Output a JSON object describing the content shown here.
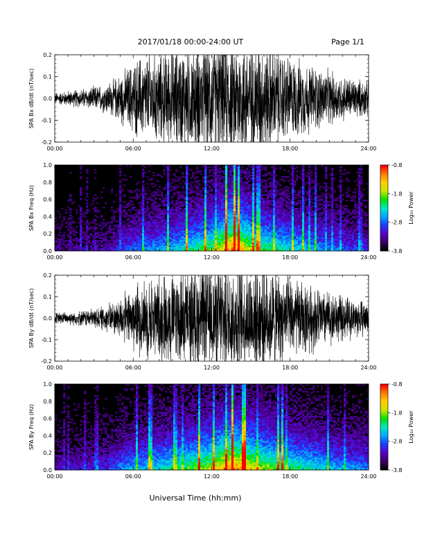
{
  "header": {
    "title": "2017/01/18  00:00-24:00 UT",
    "page": "Page 1/1"
  },
  "footer": {
    "xlabel": "Universal Time (hh:mm)"
  },
  "chart_data": [
    {
      "type": "line",
      "ylabel": "SPA Bx dB/dt (nT/sec)",
      "xlim": [
        0,
        24
      ],
      "ylim": [
        -0.2,
        0.2
      ],
      "xticks": [
        "00:00",
        "06:00",
        "12:00",
        "18:00",
        "24:00"
      ],
      "yticks": [
        "-0.2",
        "-0.1",
        "0.0",
        "0.1",
        "0.2"
      ],
      "series": [
        {
          "values": [
            {
              "t": 0,
              "amp": 0.03
            },
            {
              "t": 2,
              "amp": 0.05
            },
            {
              "t": 3.5,
              "amp": 0.07
            },
            {
              "t": 4.5,
              "amp": 0.1
            },
            {
              "t": 5.5,
              "amp": 0.16
            },
            {
              "t": 6.5,
              "amp": 0.22
            },
            {
              "t": 9,
              "amp": 0.26
            },
            {
              "t": 12,
              "amp": 0.3
            },
            {
              "t": 14,
              "amp": 0.32
            },
            {
              "t": 16,
              "amp": 0.3
            },
            {
              "t": 18,
              "amp": 0.22
            },
            {
              "t": 20,
              "amp": 0.17
            },
            {
              "t": 22,
              "amp": 0.12
            },
            {
              "t": 24,
              "amp": 0.09
            }
          ]
        }
      ]
    },
    {
      "type": "heatmap",
      "ylabel": "SPA Bx Freq (Hz)",
      "colorbar_label": "Log₁₀ Power",
      "xlim": [
        0,
        24
      ],
      "ylim": [
        0,
        1
      ],
      "zlim": [
        -3.8,
        -0.8
      ],
      "xticks": [
        "00:00",
        "06:00",
        "12:00",
        "18:00",
        "24:00"
      ],
      "yticks": [
        "0.0",
        "0.2",
        "0.4",
        "0.6",
        "0.8",
        "1.0"
      ],
      "colorbar_ticks": [
        "-0.8",
        "-1.8",
        "-2.8",
        "-3.8"
      ],
      "colormap": [
        "#000000",
        "#3a0066",
        "#5a00c8",
        "#1e3cff",
        "#00a8ff",
        "#00e8c8",
        "#00e000",
        "#c8e600",
        "#ffd000",
        "#ff8000",
        "#ff0000"
      ],
      "activity": [
        {
          "t": 0,
          "level": 0.15
        },
        {
          "t": 4,
          "level": 0.2
        },
        {
          "t": 5.5,
          "level": 0.35
        },
        {
          "t": 9,
          "level": 0.5
        },
        {
          "t": 12,
          "level": 0.7
        },
        {
          "t": 13.6,
          "level": 1.0
        },
        {
          "t": 15.5,
          "level": 0.7
        },
        {
          "t": 18,
          "level": 0.55
        },
        {
          "t": 21,
          "level": 0.4
        },
        {
          "t": 24,
          "level": 0.3
        }
      ]
    },
    {
      "type": "line",
      "ylabel": "SPA By dB/dt (nT/sec)",
      "xlim": [
        0,
        24
      ],
      "ylim": [
        -0.2,
        0.2
      ],
      "xticks": [
        "00:00",
        "06:00",
        "12:00",
        "18:00",
        "24:00"
      ],
      "yticks": [
        "-0.2",
        "-0.1",
        "0.0",
        "0.1",
        "0.2"
      ],
      "series": [
        {
          "values": [
            {
              "t": 0,
              "amp": 0.03
            },
            {
              "t": 2,
              "amp": 0.04
            },
            {
              "t": 3.5,
              "amp": 0.06
            },
            {
              "t": 4.5,
              "amp": 0.09
            },
            {
              "t": 5.5,
              "amp": 0.14
            },
            {
              "t": 6.5,
              "amp": 0.2
            },
            {
              "t": 9,
              "amp": 0.25
            },
            {
              "t": 12,
              "amp": 0.29
            },
            {
              "t": 14,
              "amp": 0.31
            },
            {
              "t": 16,
              "amp": 0.29
            },
            {
              "t": 18,
              "amp": 0.22
            },
            {
              "t": 20,
              "amp": 0.17
            },
            {
              "t": 22,
              "amp": 0.12
            },
            {
              "t": 24,
              "amp": 0.09
            }
          ]
        }
      ]
    },
    {
      "type": "heatmap",
      "ylabel": "SPA By Freq (Hz)",
      "colorbar_label": "Log₁₀ Power",
      "xlim": [
        0,
        24
      ],
      "ylim": [
        0,
        1
      ],
      "zlim": [
        -3.8,
        -0.8
      ],
      "xticks": [
        "00:00",
        "06:00",
        "12:00",
        "18:00",
        "24:00"
      ],
      "yticks": [
        "0.0",
        "0.2",
        "0.4",
        "0.6",
        "0.8",
        "1.0"
      ],
      "colorbar_ticks": [
        "-0.8",
        "-1.8",
        "-2.8",
        "-3.8"
      ],
      "colormap": [
        "#000000",
        "#3a0066",
        "#5a00c8",
        "#1e3cff",
        "#00a8ff",
        "#00e8c8",
        "#00e000",
        "#c8e600",
        "#ffd000",
        "#ff8000",
        "#ff0000"
      ],
      "activity": [
        {
          "t": 0,
          "level": 0.2
        },
        {
          "t": 4,
          "level": 0.3
        },
        {
          "t": 5.5,
          "level": 0.45
        },
        {
          "t": 9,
          "level": 0.6
        },
        {
          "t": 12,
          "level": 0.8
        },
        {
          "t": 13.6,
          "level": 1.0
        },
        {
          "t": 15.5,
          "level": 0.8
        },
        {
          "t": 18,
          "level": 0.65
        },
        {
          "t": 21,
          "level": 0.5
        },
        {
          "t": 24,
          "level": 0.4
        }
      ]
    }
  ]
}
